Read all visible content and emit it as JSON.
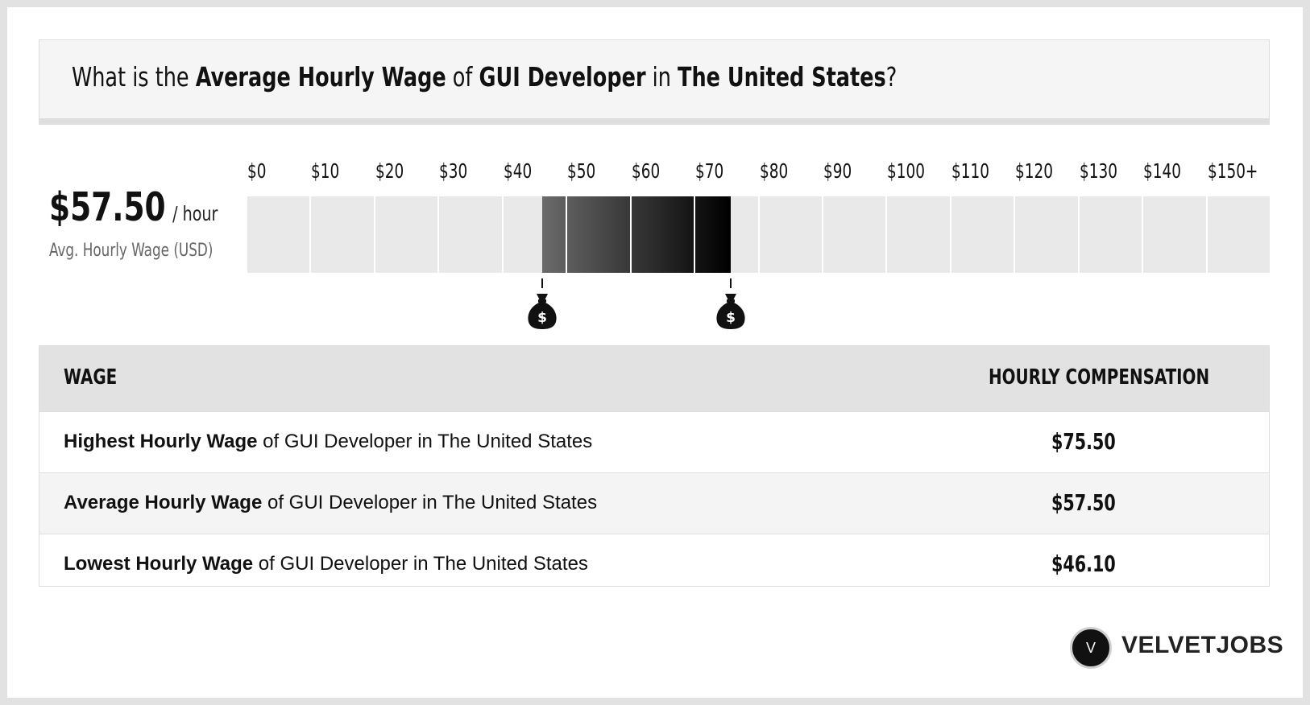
{
  "title": {
    "p1": "What is the ",
    "b1": "Average Hourly Wage",
    "p2": " of ",
    "b2": "GUI Developer",
    "p3": " in ",
    "b3": "The United States",
    "p4": "?"
  },
  "summary": {
    "amount": "$57.50",
    "unit": "/ hour",
    "subtitle": "Avg. Hourly Wage (USD)"
  },
  "chart_data": {
    "type": "bar",
    "orientation": "horizontal-range",
    "tick_labels": [
      "$0",
      "$10",
      "$20",
      "$30",
      "$40",
      "$50",
      "$60",
      "$70",
      "$80",
      "$90",
      "$100",
      "$110",
      "$120",
      "$130",
      "$140",
      "$150+"
    ],
    "xlim": [
      0,
      160
    ],
    "range_low": 46.1,
    "range_high": 75.5,
    "average": 57.5,
    "markers": [
      46.1,
      75.5
    ],
    "marker_icon": "money-bag-icon",
    "colors": {
      "track": "#e9e9e9",
      "range_start": "#6b6b6b",
      "range_end": "#000000"
    }
  },
  "table": {
    "headers": [
      "WAGE",
      "HOURLY COMPENSATION"
    ],
    "rows": [
      {
        "bold": "Highest Hourly Wage",
        "rest": " of GUI Developer in The United States",
        "value": "$75.50"
      },
      {
        "bold": "Average Hourly Wage",
        "rest": " of GUI Developer in The United States",
        "value": "$57.50"
      },
      {
        "bold": "Lowest Hourly Wage",
        "rest": " of GUI Developer in The United States",
        "value": "$46.10"
      }
    ]
  },
  "logo": {
    "letter": "V",
    "text": "VELVETJOBS"
  }
}
